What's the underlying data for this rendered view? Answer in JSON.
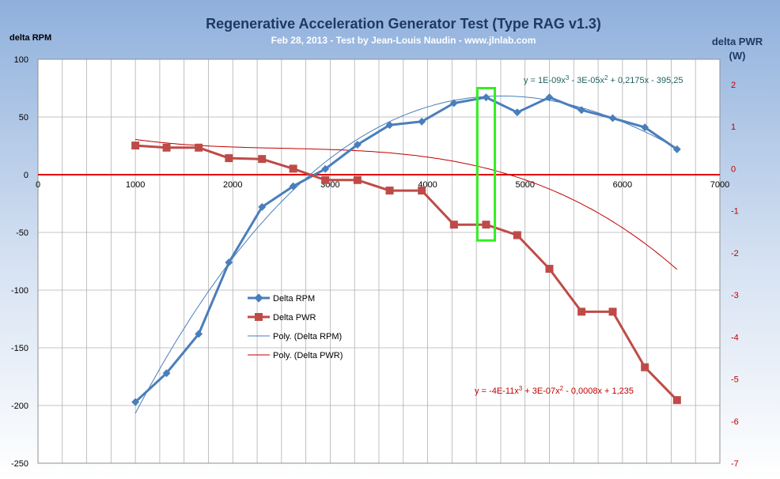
{
  "chart_data": {
    "type": "line",
    "title": "Regenerative Acceleration Generator Test (Type RAG v1.3)",
    "subtitle": "Feb 28, 2013 - Test by Jean-Louis Naudin - www.jlnlab.com",
    "ylabel_left": "delta RPM",
    "ylabel_right_line1": "delta PWR",
    "ylabel_right_line2": "(W)",
    "x_ticks": [
      "0",
      "1000",
      "2000",
      "3000",
      "4000",
      "5000",
      "6000",
      "7000"
    ],
    "y_left_ticks": [
      "100",
      "50",
      "0",
      "-50",
      "-100",
      "-150",
      "-200",
      "-250"
    ],
    "y_right_ticks": [
      "2",
      "1",
      "0",
      "-1",
      "-2",
      "-3",
      "-4",
      "-5",
      "-6",
      "-7"
    ],
    "xlim": [
      0,
      7000
    ],
    "ylim_left": [
      -250,
      100
    ],
    "ylim_right": [
      -7,
      2.6
    ],
    "grid": true,
    "legend_position": "lower-left",
    "series": [
      {
        "name": "Delta RPM",
        "axis": "left",
        "color": "#4a7ebb",
        "marker": "diamond",
        "x": [
          1000,
          1320,
          1650,
          1960,
          2300,
          2620,
          2950,
          3280,
          3610,
          3940,
          4270,
          4600,
          4920,
          5250,
          5580,
          5900,
          6230,
          6560
        ],
        "y": [
          -197,
          -172,
          -138,
          -76,
          -28,
          -10,
          5,
          26,
          43,
          46,
          62,
          67,
          54,
          67,
          56,
          49,
          41,
          22
        ]
      },
      {
        "name": "Delta PWR",
        "axis": "right",
        "color": "#be4b48",
        "marker": "square",
        "x": [
          1000,
          1320,
          1650,
          1960,
          2300,
          2620,
          2950,
          3280,
          3610,
          3940,
          4270,
          4600,
          4920,
          5250,
          5580,
          5900,
          6230,
          6560
        ],
        "y": [
          0.55,
          0.5,
          0.5,
          0.25,
          0.23,
          0.0,
          -0.27,
          -0.27,
          -0.52,
          -0.52,
          -1.33,
          -1.33,
          -1.58,
          -2.38,
          -3.4,
          -3.4,
          -4.72,
          -5.5
        ]
      }
    ],
    "trendlines": [
      {
        "name": "Poly. (Delta RPM)",
        "axis": "left",
        "color": "#4a7ebb",
        "equation": "y = 1E-09x³ - 3E-05x² + 0,2175x - 395,25",
        "coefficients": [
          1e-09,
          -3e-05,
          0.2175,
          -395.25
        ]
      },
      {
        "name": "Poly. (Delta PWR)",
        "axis": "right",
        "color": "#c00000",
        "equation": "y = -4E-11x³ + 3E-07x² - 0,0008x + 1,235",
        "coefficients": [
          -4e-11,
          3e-07,
          -0.0008,
          1.235
        ]
      }
    ],
    "highlight": {
      "x_range": [
        4510,
        4690
      ],
      "y_range_left": [
        -57,
        75
      ],
      "color": "#33ee22"
    }
  }
}
